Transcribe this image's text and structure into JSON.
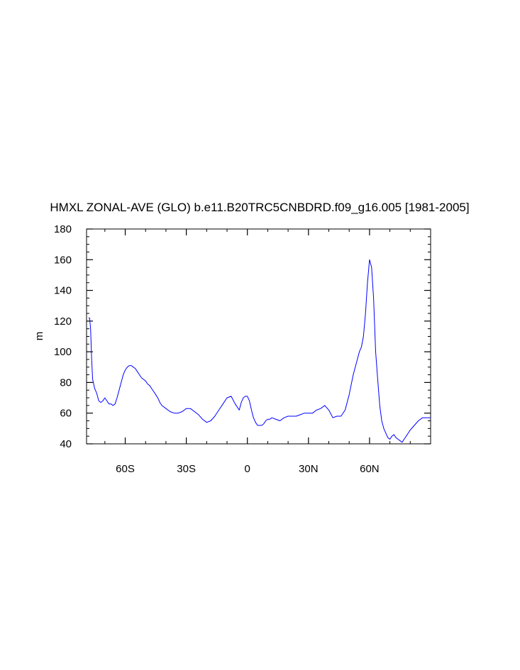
{
  "chart_data": {
    "type": "line",
    "title": "HMXL ZONAL-AVE (GLO) b.e11.B20TRC5CNBDRD.f09_g16.005 [1981-2005]",
    "xlabel": "",
    "ylabel": "m",
    "xlim": [
      -79,
      90
    ],
    "ylim": [
      40,
      180
    ],
    "x_ticks": [
      {
        "value": -60,
        "label": "60S"
      },
      {
        "value": -30,
        "label": "30S"
      },
      {
        "value": 0,
        "label": "0"
      },
      {
        "value": 30,
        "label": "30N"
      },
      {
        "value": 60,
        "label": "60N"
      }
    ],
    "y_ticks": [
      40,
      60,
      80,
      100,
      120,
      140,
      160,
      180
    ],
    "grid": false,
    "line_color": "#0000ff",
    "series": [
      {
        "x": [
          -78,
          -77.5,
          -77,
          -76.5,
          -76,
          -75,
          -74,
          -73,
          -72,
          -71,
          -70,
          -69,
          -68,
          -67,
          -66,
          -65,
          -64,
          -63,
          -62,
          -61,
          -60,
          -59,
          -58,
          -57,
          -56,
          -55,
          -54,
          -53,
          -52,
          -51,
          -50,
          -49,
          -48,
          -47,
          -46,
          -45,
          -44,
          -43,
          -42,
          -40,
          -38,
          -36,
          -34,
          -32,
          -30,
          -28,
          -26,
          -24,
          -22,
          -20,
          -18,
          -16,
          -14,
          -12,
          -10,
          -8,
          -6,
          -4,
          -3,
          -2,
          -1,
          0,
          1,
          2,
          3,
          4,
          5,
          6,
          7,
          8,
          9,
          10,
          11,
          12,
          14,
          16,
          18,
          20,
          22,
          24,
          26,
          28,
          30,
          32,
          34,
          36,
          38,
          40,
          42,
          44,
          46,
          48,
          50,
          52,
          54,
          55,
          56,
          57,
          58,
          59,
          60,
          61,
          62,
          63,
          64,
          65,
          66,
          67,
          68,
          69,
          70,
          71,
          72,
          73,
          74,
          75,
          76,
          77,
          78,
          79,
          80,
          82,
          84,
          86,
          88,
          90
        ],
        "values": [
          122,
          122,
          115,
          95,
          82,
          76,
          73,
          68,
          67,
          68,
          70,
          68,
          66,
          66,
          65,
          66,
          70,
          75,
          80,
          85,
          88,
          90,
          91,
          91,
          90,
          89,
          87,
          85,
          83,
          82,
          81,
          79,
          78,
          76,
          74,
          72,
          70,
          67,
          65,
          63,
          61,
          60,
          60,
          61,
          63,
          63,
          61,
          59,
          56,
          54,
          55,
          58,
          62,
          66,
          70,
          71,
          66,
          62,
          67,
          70,
          71,
          71,
          68,
          62,
          57,
          54,
          52,
          52,
          52,
          53,
          55,
          56,
          56,
          57,
          56,
          55,
          57,
          58,
          58,
          58,
          59,
          60,
          60,
          60,
          62,
          63,
          65,
          62,
          57,
          58,
          58,
          62,
          72,
          85,
          95,
          100,
          103,
          110,
          125,
          145,
          160,
          155,
          135,
          100,
          82,
          65,
          55,
          50,
          47,
          44,
          43,
          45,
          46,
          44,
          43,
          42,
          41,
          43,
          45,
          47,
          49,
          52,
          55,
          57,
          57,
          57
        ]
      }
    ]
  }
}
